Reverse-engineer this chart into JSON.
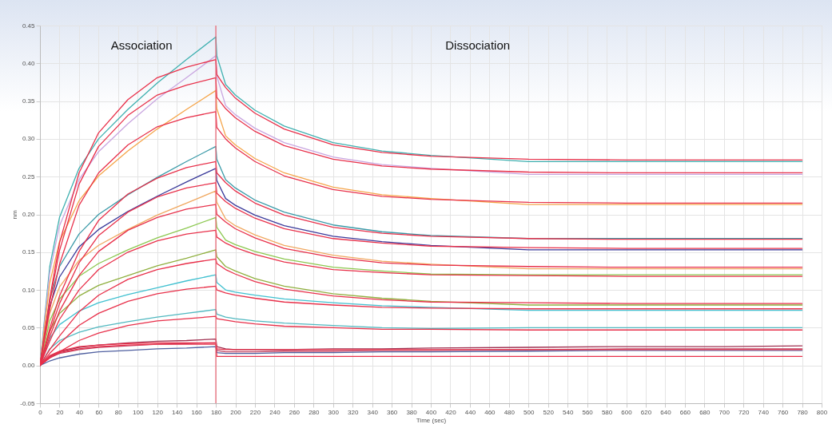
{
  "chart_data": {
    "type": "line",
    "xlabel": "Time (sec)",
    "ylabel": "nm",
    "annotations": [
      "Association",
      "Dissociation"
    ],
    "x": [
      0,
      10,
      20,
      40,
      60,
      90,
      120,
      150,
      180,
      181,
      190,
      200,
      220,
      250,
      300,
      350,
      400,
      500,
      600,
      700,
      780
    ],
    "series": [
      {
        "color": "#3fb0b0",
        "values": [
          0,
          0.131,
          0.196,
          0.261,
          0.3,
          0.339,
          0.374,
          0.405,
          0.435,
          0.41,
          0.372,
          0.358,
          0.338,
          0.317,
          0.295,
          0.284,
          0.278,
          0.27,
          0.27,
          0.27,
          0.27
        ]
      },
      {
        "color": "#c9a6e0",
        "values": [
          0,
          0.123,
          0.185,
          0.246,
          0.283,
          0.32,
          0.353,
          0.381,
          0.41,
          0.383,
          0.344,
          0.332,
          0.314,
          0.295,
          0.276,
          0.266,
          0.261,
          0.253,
          0.253,
          0.253,
          0.253
        ]
      },
      {
        "color": "#f5a54a",
        "values": [
          0,
          0.109,
          0.164,
          0.218,
          0.251,
          0.284,
          0.313,
          0.339,
          0.364,
          0.34,
          0.304,
          0.292,
          0.274,
          0.255,
          0.236,
          0.226,
          0.221,
          0.213,
          0.213,
          0.213,
          0.213
        ]
      },
      {
        "color": "#3a9aa8",
        "values": [
          0,
          0.087,
          0.131,
          0.174,
          0.2,
          0.226,
          0.249,
          0.27,
          0.29,
          0.273,
          0.246,
          0.235,
          0.219,
          0.203,
          0.186,
          0.177,
          0.172,
          0.168,
          0.168,
          0.168,
          0.168
        ]
      },
      {
        "color": "#3a3a9a",
        "values": [
          0,
          0.078,
          0.117,
          0.157,
          0.18,
          0.204,
          0.224,
          0.243,
          0.261,
          0.245,
          0.221,
          0.212,
          0.199,
          0.185,
          0.171,
          0.164,
          0.159,
          0.153,
          0.153,
          0.153,
          0.153
        ]
      },
      {
        "color": "#f0a860",
        "values": [
          0,
          0.069,
          0.104,
          0.139,
          0.159,
          0.18,
          0.199,
          0.215,
          0.231,
          0.216,
          0.194,
          0.185,
          0.173,
          0.159,
          0.146,
          0.138,
          0.134,
          0.128,
          0.128,
          0.128,
          0.128
        ]
      },
      {
        "color": "#8cc850",
        "values": [
          0,
          0.059,
          0.088,
          0.118,
          0.135,
          0.153,
          0.169,
          0.182,
          0.196,
          0.183,
          0.166,
          0.16,
          0.151,
          0.141,
          0.13,
          0.125,
          0.121,
          0.12,
          0.12,
          0.12,
          0.12
        ]
      },
      {
        "color": "#90b040",
        "values": [
          0,
          0.046,
          0.069,
          0.092,
          0.106,
          0.119,
          0.132,
          0.142,
          0.153,
          0.144,
          0.131,
          0.125,
          0.115,
          0.105,
          0.095,
          0.089,
          0.085,
          0.08,
          0.08,
          0.08,
          0.08
        ]
      },
      {
        "color": "#40c0d0",
        "values": [
          0,
          0.036,
          0.054,
          0.072,
          0.083,
          0.094,
          0.103,
          0.112,
          0.12,
          0.11,
          0.1,
          0.097,
          0.093,
          0.088,
          0.083,
          0.079,
          0.077,
          0.073,
          0.073,
          0.073,
          0.073
        ]
      },
      {
        "color": "#50b8c0",
        "values": [
          0,
          0.022,
          0.033,
          0.044,
          0.051,
          0.058,
          0.064,
          0.069,
          0.074,
          0.068,
          0.064,
          0.062,
          0.059,
          0.056,
          0.053,
          0.05,
          0.049,
          0.05,
          0.05,
          0.05,
          0.05
        ]
      },
      {
        "color": "#a03050",
        "values": [
          0,
          0.012,
          0.018,
          0.024,
          0.027,
          0.03,
          0.032,
          0.033,
          0.035,
          0.025,
          0.022,
          0.021,
          0.021,
          0.021,
          0.022,
          0.022,
          0.023,
          0.024,
          0.025,
          0.025,
          0.026
        ]
      },
      {
        "color": "#c04060",
        "values": [
          0,
          0.01,
          0.016,
          0.021,
          0.024,
          0.026,
          0.028,
          0.029,
          0.03,
          0.02,
          0.018,
          0.018,
          0.018,
          0.019,
          0.019,
          0.02,
          0.02,
          0.021,
          0.022,
          0.022,
          0.022
        ]
      },
      {
        "color": "#5060a0",
        "values": [
          0,
          0.006,
          0.01,
          0.015,
          0.018,
          0.02,
          0.022,
          0.023,
          0.025,
          0.017,
          0.016,
          0.016,
          0.016,
          0.017,
          0.017,
          0.018,
          0.018,
          0.019,
          0.02,
          0.02,
          0.02
        ]
      },
      {
        "color": "#e8304a",
        "values": [
          0,
          0.089,
          0.162,
          0.255,
          0.308,
          0.352,
          0.381,
          0.395,
          0.405,
          0.385,
          0.368,
          0.354,
          0.334,
          0.313,
          0.292,
          0.282,
          0.277,
          0.273,
          0.272,
          0.272,
          0.272
        ]
      },
      {
        "color": "#e8304a",
        "values": [
          0,
          0.084,
          0.152,
          0.24,
          0.29,
          0.331,
          0.358,
          0.371,
          0.381,
          0.355,
          0.34,
          0.328,
          0.31,
          0.291,
          0.273,
          0.264,
          0.26,
          0.256,
          0.255,
          0.255,
          0.255
        ]
      },
      {
        "color": "#e8304a",
        "values": [
          0,
          0.074,
          0.134,
          0.212,
          0.255,
          0.292,
          0.316,
          0.328,
          0.336,
          0.315,
          0.3,
          0.288,
          0.27,
          0.251,
          0.233,
          0.224,
          0.22,
          0.216,
          0.215,
          0.215,
          0.215
        ]
      },
      {
        "color": "#e8304a",
        "values": [
          0,
          0.049,
          0.092,
          0.151,
          0.192,
          0.227,
          0.248,
          0.262,
          0.27,
          0.255,
          0.242,
          0.231,
          0.215,
          0.199,
          0.183,
          0.175,
          0.171,
          0.168,
          0.167,
          0.167,
          0.167
        ]
      },
      {
        "color": "#e8304a",
        "values": [
          0,
          0.044,
          0.082,
          0.136,
          0.172,
          0.203,
          0.223,
          0.235,
          0.242,
          0.228,
          0.217,
          0.208,
          0.195,
          0.181,
          0.168,
          0.162,
          0.158,
          0.156,
          0.155,
          0.155,
          0.155
        ]
      },
      {
        "color": "#e8304a",
        "values": [
          0,
          0.038,
          0.072,
          0.119,
          0.151,
          0.179,
          0.196,
          0.207,
          0.213,
          0.2,
          0.19,
          0.181,
          0.169,
          0.155,
          0.143,
          0.136,
          0.133,
          0.131,
          0.13,
          0.13,
          0.13
        ]
      },
      {
        "color": "#e8304a",
        "values": [
          0,
          0.032,
          0.061,
          0.1,
          0.127,
          0.15,
          0.165,
          0.174,
          0.179,
          0.17,
          0.162,
          0.156,
          0.147,
          0.137,
          0.127,
          0.123,
          0.12,
          0.119,
          0.118,
          0.118,
          0.118
        ]
      },
      {
        "color": "#e8304a",
        "values": [
          0,
          0.021,
          0.039,
          0.071,
          0.093,
          0.114,
          0.127,
          0.135,
          0.141,
          0.135,
          0.127,
          0.121,
          0.111,
          0.101,
          0.092,
          0.087,
          0.084,
          0.083,
          0.082,
          0.082,
          0.082
        ]
      },
      {
        "color": "#e8304a",
        "values": [
          0,
          0.016,
          0.029,
          0.053,
          0.069,
          0.085,
          0.095,
          0.101,
          0.105,
          0.1,
          0.096,
          0.093,
          0.089,
          0.084,
          0.08,
          0.077,
          0.076,
          0.075,
          0.075,
          0.075,
          0.075
        ]
      },
      {
        "color": "#e8304a",
        "values": [
          0,
          0.01,
          0.018,
          0.033,
          0.043,
          0.053,
          0.059,
          0.062,
          0.065,
          0.062,
          0.06,
          0.058,
          0.055,
          0.052,
          0.05,
          0.048,
          0.048,
          0.047,
          0.047,
          0.047,
          0.047
        ]
      },
      {
        "color": "#e8304a",
        "values": [
          0,
          0.013,
          0.019,
          0.025,
          0.027,
          0.029,
          0.03,
          0.03,
          0.03,
          0.022,
          0.021,
          0.021,
          0.021,
          0.021,
          0.021,
          0.021,
          0.021,
          0.021,
          0.021,
          0.021,
          0.021
        ]
      },
      {
        "color": "#e8304a",
        "values": [
          0,
          0.011,
          0.017,
          0.022,
          0.025,
          0.027,
          0.028,
          0.028,
          0.028,
          0.012,
          0.012,
          0.012,
          0.012,
          0.012,
          0.012,
          0.012,
          0.012,
          0.012,
          0.012,
          0.012,
          0.012
        ]
      }
    ],
    "ref_lines": [
      {
        "axis": "x",
        "value": 180,
        "color": "#e86070"
      }
    ],
    "xlim": [
      0,
      800
    ],
    "xticks": [
      0,
      20,
      40,
      60,
      80,
      100,
      120,
      140,
      160,
      180,
      200,
      220,
      240,
      260,
      280,
      300,
      320,
      340,
      360,
      380,
      400,
      420,
      440,
      460,
      480,
      500,
      520,
      540,
      560,
      580,
      600,
      620,
      640,
      660,
      680,
      700,
      720,
      740,
      760,
      780,
      800
    ],
    "ylim": [
      -0.05,
      0.45
    ],
    "yticks": [
      {
        "value": -0.05,
        "label": "-0.05"
      },
      {
        "value": 0,
        "label": "0.00"
      },
      {
        "value": 0.05,
        "label": "0.05"
      },
      {
        "value": 0.1,
        "label": "0.10"
      },
      {
        "value": 0.15,
        "label": "0.15"
      },
      {
        "value": 0.2,
        "label": "0.20"
      },
      {
        "value": 0.25,
        "label": "0.25"
      },
      {
        "value": 0.3,
        "label": "0.30"
      },
      {
        "value": 0.35,
        "label": "0.35"
      },
      {
        "value": 0.4,
        "label": "0.40"
      },
      {
        "value": 0.45,
        "label": "0.45"
      }
    ],
    "grid": true,
    "legend": false,
    "marker": "none",
    "line_style": "solid"
  }
}
